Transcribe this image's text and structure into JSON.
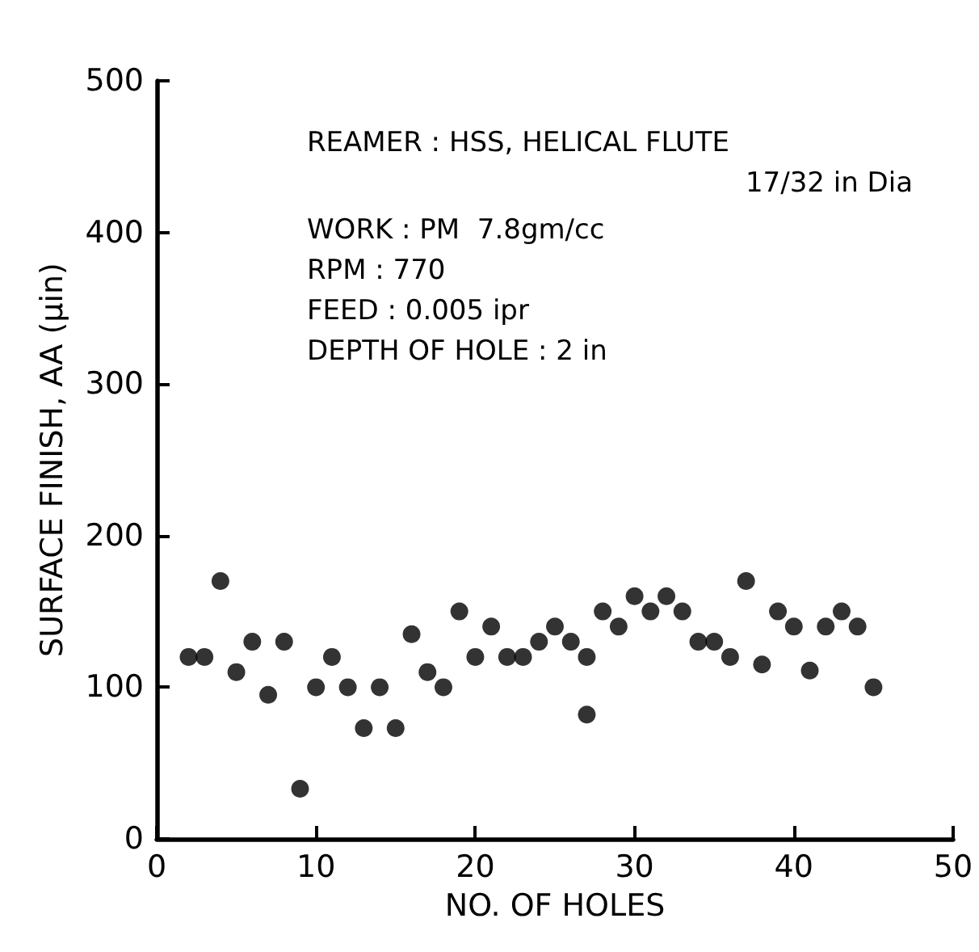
{
  "chart_data": {
    "type": "scatter",
    "xlabel": "NO. OF HOLES",
    "ylabel": "SURFACE FINISH, AA (µin)",
    "annotations": [
      "REAMER : HSS, HELICAL FLUTE",
      "17/32 in Dia",
      "WORK : PM  7.8gm/cc",
      "RPM : 770",
      "FEED : 0.005 ipr",
      "DEPTH OF HOLE : 2 in"
    ],
    "x": [
      2,
      3,
      4,
      5,
      6,
      7,
      8,
      9,
      10,
      11,
      12,
      13,
      14,
      15,
      16,
      17,
      18,
      19,
      20,
      21,
      22,
      23,
      24,
      25,
      26,
      27,
      27,
      28,
      29,
      30,
      31,
      32,
      33,
      34,
      35,
      36,
      37,
      38,
      39,
      40,
      41,
      42,
      43,
      44,
      45
    ],
    "values": [
      120,
      120,
      170,
      110,
      130,
      95,
      130,
      33,
      100,
      120,
      100,
      73,
      100,
      73,
      135,
      110,
      100,
      150,
      120,
      140,
      120,
      120,
      130,
      140,
      130,
      82,
      120,
      150,
      140,
      160,
      150,
      160,
      150,
      130,
      130,
      120,
      170,
      115,
      150,
      140,
      111,
      140,
      150,
      140,
      100
    ],
    "color": "#000000",
    "marker": "circle",
    "grid": false,
    "xlim": [
      0,
      50
    ],
    "xticks": [
      0,
      10,
      20,
      30,
      40,
      50
    ],
    "ylim": [
      0,
      500
    ],
    "yticks": [
      0,
      100,
      200,
      300,
      400,
      500
    ]
  }
}
